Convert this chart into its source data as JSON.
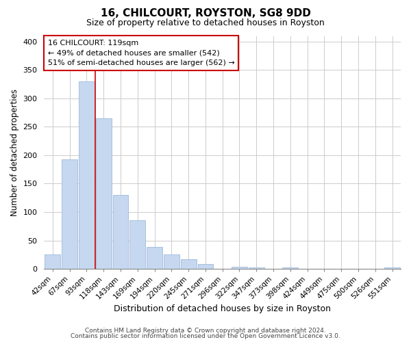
{
  "title": "16, CHILCOURT, ROYSTON, SG8 9DD",
  "subtitle": "Size of property relative to detached houses in Royston",
  "xlabel": "Distribution of detached houses by size in Royston",
  "ylabel": "Number of detached properties",
  "bar_labels": [
    "42sqm",
    "67sqm",
    "93sqm",
    "118sqm",
    "143sqm",
    "169sqm",
    "194sqm",
    "220sqm",
    "245sqm",
    "271sqm",
    "296sqm",
    "322sqm",
    "347sqm",
    "373sqm",
    "398sqm",
    "424sqm",
    "449sqm",
    "475sqm",
    "500sqm",
    "526sqm",
    "551sqm"
  ],
  "bar_values": [
    25,
    193,
    330,
    265,
    130,
    86,
    38,
    25,
    17,
    8,
    0,
    4,
    3,
    0,
    2,
    0,
    0,
    0,
    0,
    0,
    2
  ],
  "bar_color": "#c5d8f0",
  "bar_edge_color": "#a0b8d8",
  "highlight_line_color": "#cc0000",
  "ylim": [
    0,
    410
  ],
  "yticks": [
    0,
    50,
    100,
    150,
    200,
    250,
    300,
    350,
    400
  ],
  "annotation_title": "16 CHILCOURT: 119sqm",
  "annotation_line1": "← 49% of detached houses are smaller (542)",
  "annotation_line2": "51% of semi-detached houses are larger (562) →",
  "annotation_box_color": "#ffffff",
  "annotation_box_edge": "#cc0000",
  "footer_line1": "Contains HM Land Registry data © Crown copyright and database right 2024.",
  "footer_line2": "Contains public sector information licensed under the Open Government Licence v3.0.",
  "background_color": "#ffffff",
  "grid_color": "#cccccc",
  "title_fontsize": 11,
  "subtitle_fontsize": 9
}
